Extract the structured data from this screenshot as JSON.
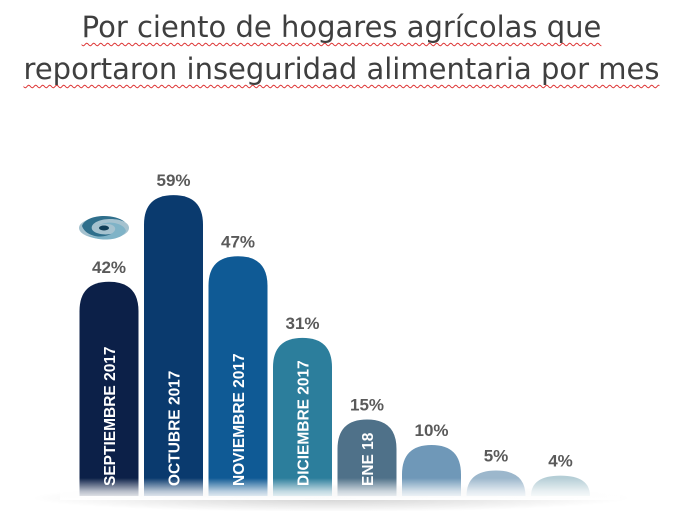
{
  "title_line1": "Por ciento de hogares agrícolas que",
  "title_line2": "reportaron inseguridad alimentaria por mes",
  "chart_data": {
    "type": "bar",
    "title": "Por ciento de hogares agrícolas que reportaron inseguridad alimentaria por mes",
    "categories": [
      "SEPTIEMBRE 2017",
      "OCTUBRE 2017",
      "NOVIEMBRE 2017",
      "DICIEMBRE 2017",
      "ENE 18",
      "",
      "",
      ""
    ],
    "values": [
      42,
      59,
      47,
      31,
      15,
      10,
      5,
      4
    ],
    "value_labels": [
      "42%",
      "59%",
      "47%",
      "31%",
      "15%",
      "10%",
      "5%",
      "4%"
    ],
    "unit": "%",
    "ylim": [
      0,
      60
    ],
    "xlabel": "",
    "ylabel": "",
    "colors": [
      "#0c2048",
      "#0a3a6e",
      "#0f5a95",
      "#2c7e9c",
      "#4f7189",
      "#6f98b8",
      "#9cb7cc",
      "#b5ced6"
    ]
  },
  "icon": "hurricane-icon"
}
